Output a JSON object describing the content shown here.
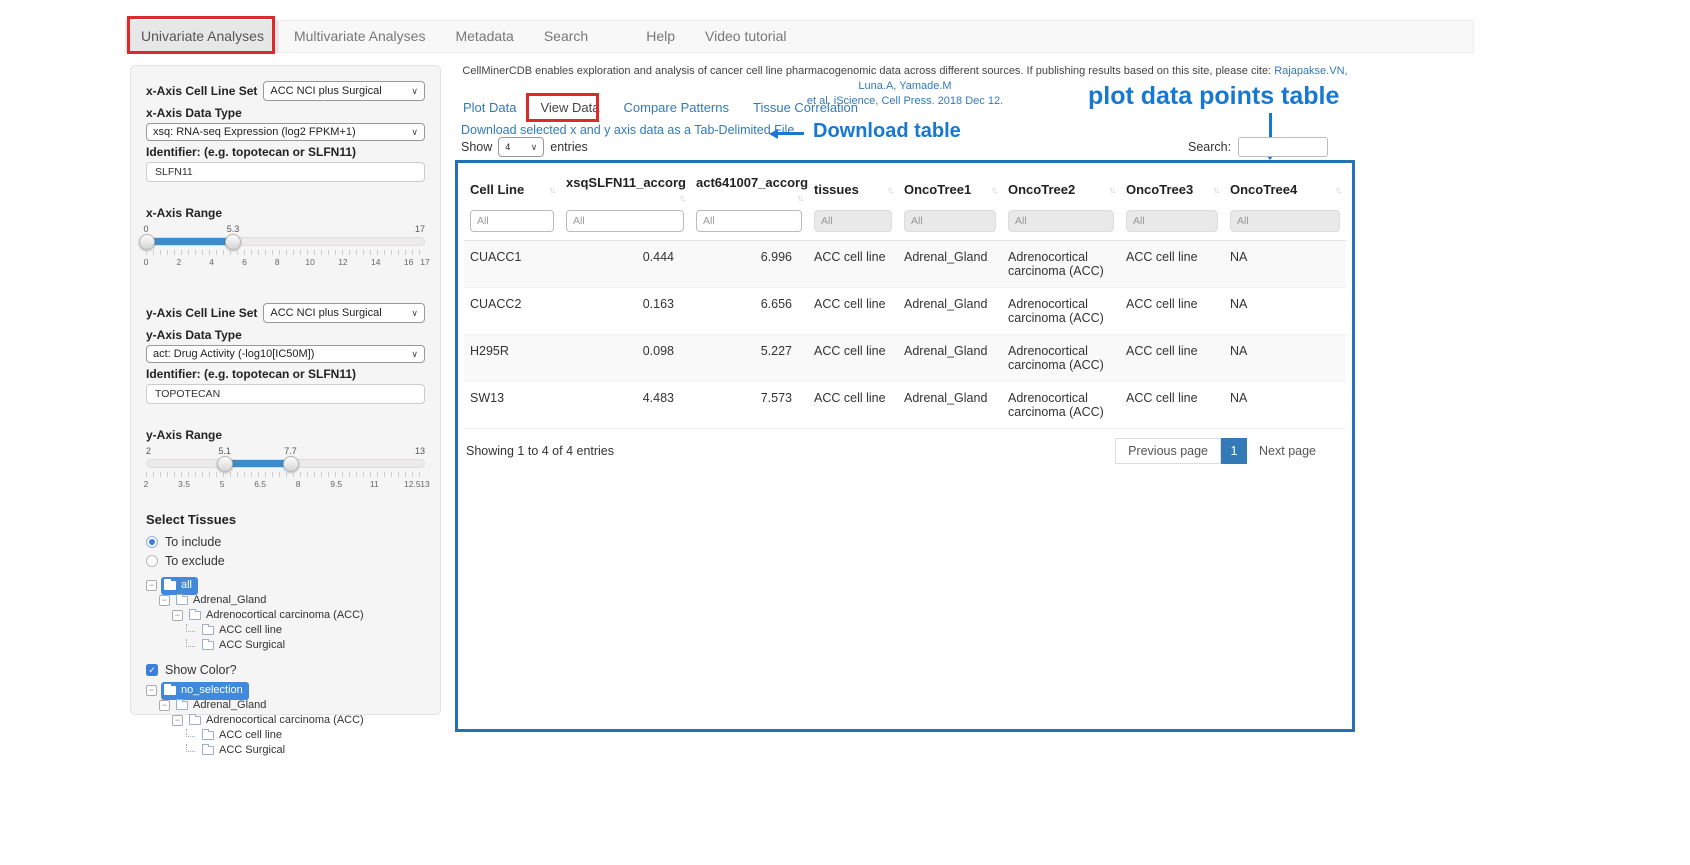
{
  "colors": {
    "accent_blue": "#337ab7",
    "annotation_blue": "#1778d2",
    "annotation_red": "#da2a2a",
    "table_border_blue": "#2471b5",
    "slider_blue": "#3f8ac9",
    "tree_selected": "#4189dd"
  },
  "navbar": {
    "items": [
      {
        "label": "Univariate Analyses",
        "active": true
      },
      {
        "label": "Multivariate Analyses",
        "active": false
      },
      {
        "label": "Metadata",
        "active": false
      },
      {
        "label": "Search",
        "active": false
      },
      {
        "label": "Help",
        "active": false
      },
      {
        "label": "Video tutorial",
        "active": false
      }
    ]
  },
  "sidebar": {
    "x_axis": {
      "cell_line_set_label": "x-Axis Cell Line Set",
      "cell_line_set_value": "ACC NCI plus Surgical",
      "data_type_label": "x-Axis Data Type",
      "data_type_value": "xsq: RNA-seq Expression (log2 FPKM+1)",
      "identifier_label": "Identifier: (e.g. topotecan or SLFN11)",
      "identifier_value": "SLFN11",
      "range_label": "x-Axis Range",
      "range": {
        "min": 0,
        "max": 17,
        "from": 0,
        "to": 5.3,
        "from_label": "0",
        "to_label": "5.3",
        "min_label": "0",
        "max_label": "17",
        "ticks": [
          [
            0,
            "0"
          ],
          [
            2,
            "2"
          ],
          [
            4,
            "4"
          ],
          [
            6,
            "6"
          ],
          [
            8,
            "8"
          ],
          [
            10,
            "10"
          ],
          [
            12,
            "12"
          ],
          [
            14,
            "14"
          ],
          [
            16,
            "16"
          ],
          [
            17,
            "17"
          ]
        ]
      }
    },
    "y_axis": {
      "cell_line_set_label": "y-Axis Cell Line Set",
      "cell_line_set_value": "ACC NCI plus Surgical",
      "data_type_label": "y-Axis Data Type",
      "data_type_value": "act: Drug Activity (-log10[IC50M])",
      "identifier_label": "Identifier: (e.g. topotecan or SLFN11)",
      "identifier_value": "TOPOTECAN",
      "range_label": "y-Axis Range",
      "range": {
        "min": 2,
        "max": 13,
        "from": 5.1,
        "to": 7.7,
        "from_label": "5.1",
        "to_label": "7.7",
        "min_label": "2",
        "max_label": "13",
        "ticks": [
          [
            2,
            "2"
          ],
          [
            3.5,
            "3.5"
          ],
          [
            5,
            "5"
          ],
          [
            6.5,
            "6.5"
          ],
          [
            8,
            "8"
          ],
          [
            9.5,
            "9.5"
          ],
          [
            11,
            "11"
          ],
          [
            12.5,
            "12.5"
          ],
          [
            13,
            "13"
          ]
        ]
      }
    },
    "select_tissues": {
      "heading": "Select Tissues",
      "radio_include": "To include",
      "radio_exclude": "To exclude",
      "include_selected": true,
      "show_color_label": "Show Color?",
      "show_color_checked": true,
      "check_glyph": "✓"
    },
    "include_tree": [
      {
        "label": "all",
        "depth": 0,
        "selected": true,
        "leaf": false
      },
      {
        "label": "Adrenal_Gland",
        "depth": 1,
        "selected": false,
        "leaf": false
      },
      {
        "label": "Adrenocortical carcinoma (ACC)",
        "depth": 2,
        "selected": false,
        "leaf": false
      },
      {
        "label": "ACC cell line",
        "depth": 3,
        "selected": false,
        "leaf": true
      },
      {
        "label": "ACC Surgical",
        "depth": 3,
        "selected": false,
        "leaf": true
      }
    ],
    "color_tree": [
      {
        "label": "no_selection",
        "depth": 0,
        "selected": true,
        "leaf": false
      },
      {
        "label": "Adrenal_Gland",
        "depth": 1,
        "selected": false,
        "leaf": false
      },
      {
        "label": "Adrenocortical carcinoma (ACC)",
        "depth": 2,
        "selected": false,
        "leaf": false
      },
      {
        "label": "ACC cell line",
        "depth": 3,
        "selected": false,
        "leaf": true
      },
      {
        "label": "ACC Surgical",
        "depth": 3,
        "selected": false,
        "leaf": true
      }
    ]
  },
  "main": {
    "citation": {
      "text": "CellMinerCDB enables exploration and analysis of cancer cell line pharmacogenomic data across different sources. If publishing results based on this site, please cite:",
      "link1": "Rajapakse.VN, Luna.A, Yamade.M",
      "link2": "et al. iScience, Cell Press. 2018 Dec 12."
    },
    "tabs": [
      {
        "label": "Plot Data",
        "active": false
      },
      {
        "label": "View Data",
        "active": true
      },
      {
        "label": "Compare Patterns",
        "active": false
      },
      {
        "label": "Tissue Correlation",
        "active": false
      }
    ],
    "download_link": "Download selected x and y axis data as a Tab-Delimited File",
    "show": {
      "label": "Show",
      "value": "4",
      "suffix": "entries"
    },
    "search_label": "Search:",
    "annotations": {
      "plot_table": "plot data points table",
      "download_table": "Download table"
    },
    "table": {
      "columns": [
        "Cell Line",
        "xsqSLFN11_accorg",
        "act641007_accorg",
        "tissues",
        "OncoTree1",
        "OncoTree2",
        "OncoTree3",
        "OncoTree4"
      ],
      "sort_icon": "↑↓",
      "filter_placeholder": "All",
      "rows": [
        [
          "CUACC1",
          "0.444",
          "6.996",
          "ACC cell line",
          "Adrenal_Gland",
          "Adrenocortical carcinoma (ACC)",
          "ACC cell line",
          "NA"
        ],
        [
          "CUACC2",
          "0.163",
          "6.656",
          "ACC cell line",
          "Adrenal_Gland",
          "Adrenocortical carcinoma (ACC)",
          "ACC cell line",
          "NA"
        ],
        [
          "H295R",
          "0.098",
          "5.227",
          "ACC cell line",
          "Adrenal_Gland",
          "Adrenocortical carcinoma (ACC)",
          "ACC cell line",
          "NA"
        ],
        [
          "SW13",
          "4.483",
          "7.573",
          "ACC cell line",
          "Adrenal_Gland",
          "Adrenocortical carcinoma (ACC)",
          "ACC cell line",
          "NA"
        ]
      ],
      "footer": "Showing 1 to 4 of 4 entries",
      "pagination": {
        "previous": "Previous page",
        "current": "1",
        "next": "Next page"
      }
    }
  },
  "ui_glyphs": {
    "chevron": "∨"
  }
}
